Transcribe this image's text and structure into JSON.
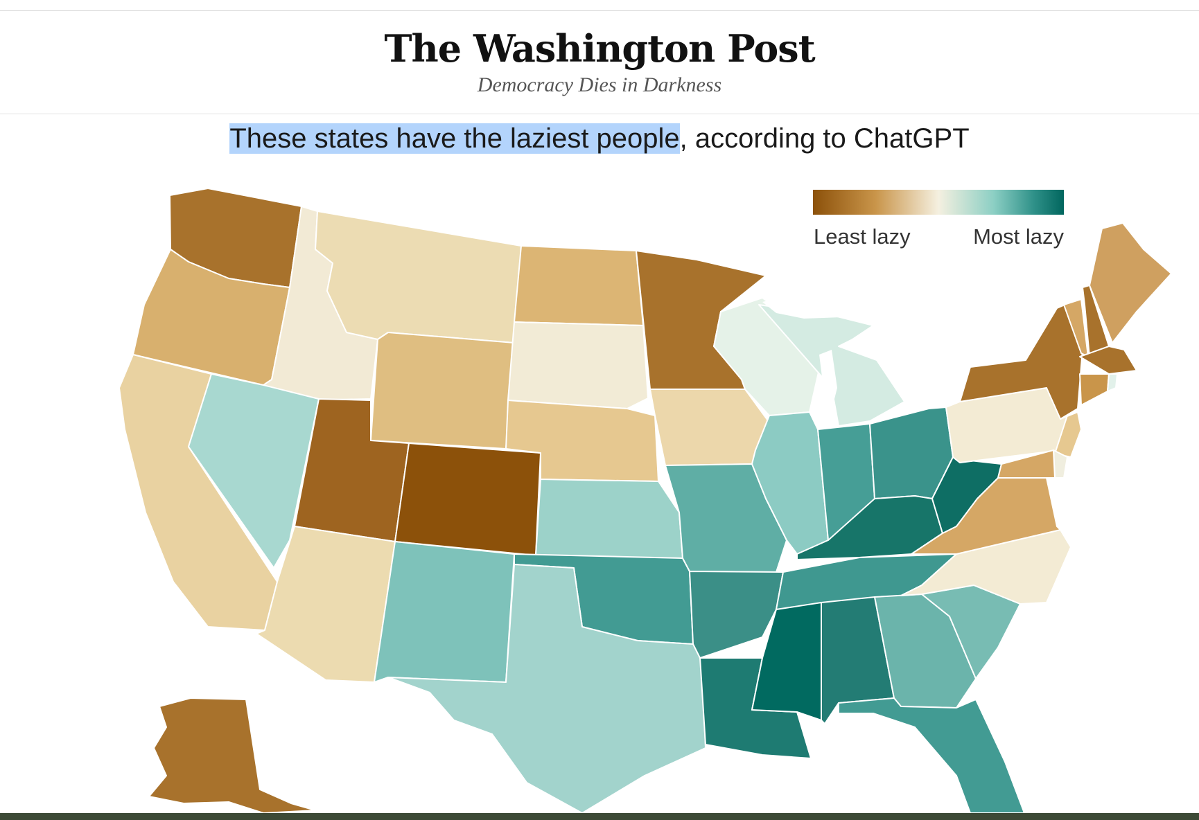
{
  "masthead": {
    "title": "The Washington Post",
    "tagline": "Democracy Dies in Darkness"
  },
  "headline": {
    "selected_text": "These states have the laziest people",
    "rest_text": ", according to ChatGPT"
  },
  "legend": {
    "low_label": "Least lazy",
    "high_label": "Most lazy",
    "color_low": "#8c510a",
    "color_mid": "#f5f0e0",
    "color_high": "#01665e"
  },
  "states": [
    {
      "id": "WA",
      "color": "#a8722c"
    },
    {
      "id": "OR",
      "color": "#d8b06e"
    },
    {
      "id": "CA",
      "color": "#e9d2a1"
    },
    {
      "id": "ID",
      "color": "#f2ead5"
    },
    {
      "id": "NV",
      "color": "#a8d8d0"
    },
    {
      "id": "MT",
      "color": "#ecdcb3"
    },
    {
      "id": "WY",
      "color": "#dfbe81"
    },
    {
      "id": "UT",
      "color": "#9e6420"
    },
    {
      "id": "AZ",
      "color": "#ecdbb0"
    },
    {
      "id": "CO",
      "color": "#8c510a"
    },
    {
      "id": "NM",
      "color": "#7ec2ba"
    },
    {
      "id": "ND",
      "color": "#dcb574"
    },
    {
      "id": "SD",
      "color": "#f2ebd6"
    },
    {
      "id": "NE",
      "color": "#e6c890"
    },
    {
      "id": "KS",
      "color": "#9cd2c9"
    },
    {
      "id": "OK",
      "color": "#429b93"
    },
    {
      "id": "TX",
      "color": "#a2d3cc"
    },
    {
      "id": "MN",
      "color": "#a8722c"
    },
    {
      "id": "IA",
      "color": "#ecd7ab"
    },
    {
      "id": "MO",
      "color": "#5faea5"
    },
    {
      "id": "AR",
      "color": "#3b8f87"
    },
    {
      "id": "LA",
      "color": "#1e7b72"
    },
    {
      "id": "WI",
      "color": "#e5f2e8"
    },
    {
      "id": "IL",
      "color": "#8ccbc3"
    },
    {
      "id": "MI",
      "color": "#d4ebe2"
    },
    {
      "id": "IN",
      "color": "#469e96"
    },
    {
      "id": "OH",
      "color": "#3a938b"
    },
    {
      "id": "KY",
      "color": "#177569"
    },
    {
      "id": "TN",
      "color": "#3f9890"
    },
    {
      "id": "MS",
      "color": "#016a60"
    },
    {
      "id": "AL",
      "color": "#237c74"
    },
    {
      "id": "GA",
      "color": "#6bb4ab"
    },
    {
      "id": "FL",
      "color": "#429b93"
    },
    {
      "id": "SC",
      "color": "#78bcb3"
    },
    {
      "id": "NC",
      "color": "#f3ebd4"
    },
    {
      "id": "VA",
      "color": "#d5a765"
    },
    {
      "id": "WV",
      "color": "#0e6e64"
    },
    {
      "id": "PA",
      "color": "#f3ebd4"
    },
    {
      "id": "NY",
      "color": "#a8722c"
    },
    {
      "id": "VT",
      "color": "#d5a765"
    },
    {
      "id": "NH",
      "color": "#a8722c"
    },
    {
      "id": "ME",
      "color": "#cfa060"
    },
    {
      "id": "MA",
      "color": "#a8722c"
    },
    {
      "id": "CT",
      "color": "#c9954a"
    },
    {
      "id": "RI",
      "color": "#e2f1ea"
    },
    {
      "id": "NJ",
      "color": "#e6c890"
    },
    {
      "id": "DE",
      "color": "#f0eedf"
    },
    {
      "id": "MD",
      "color": "#d5a765"
    },
    {
      "id": "AK",
      "color": "#a8722c"
    }
  ]
}
